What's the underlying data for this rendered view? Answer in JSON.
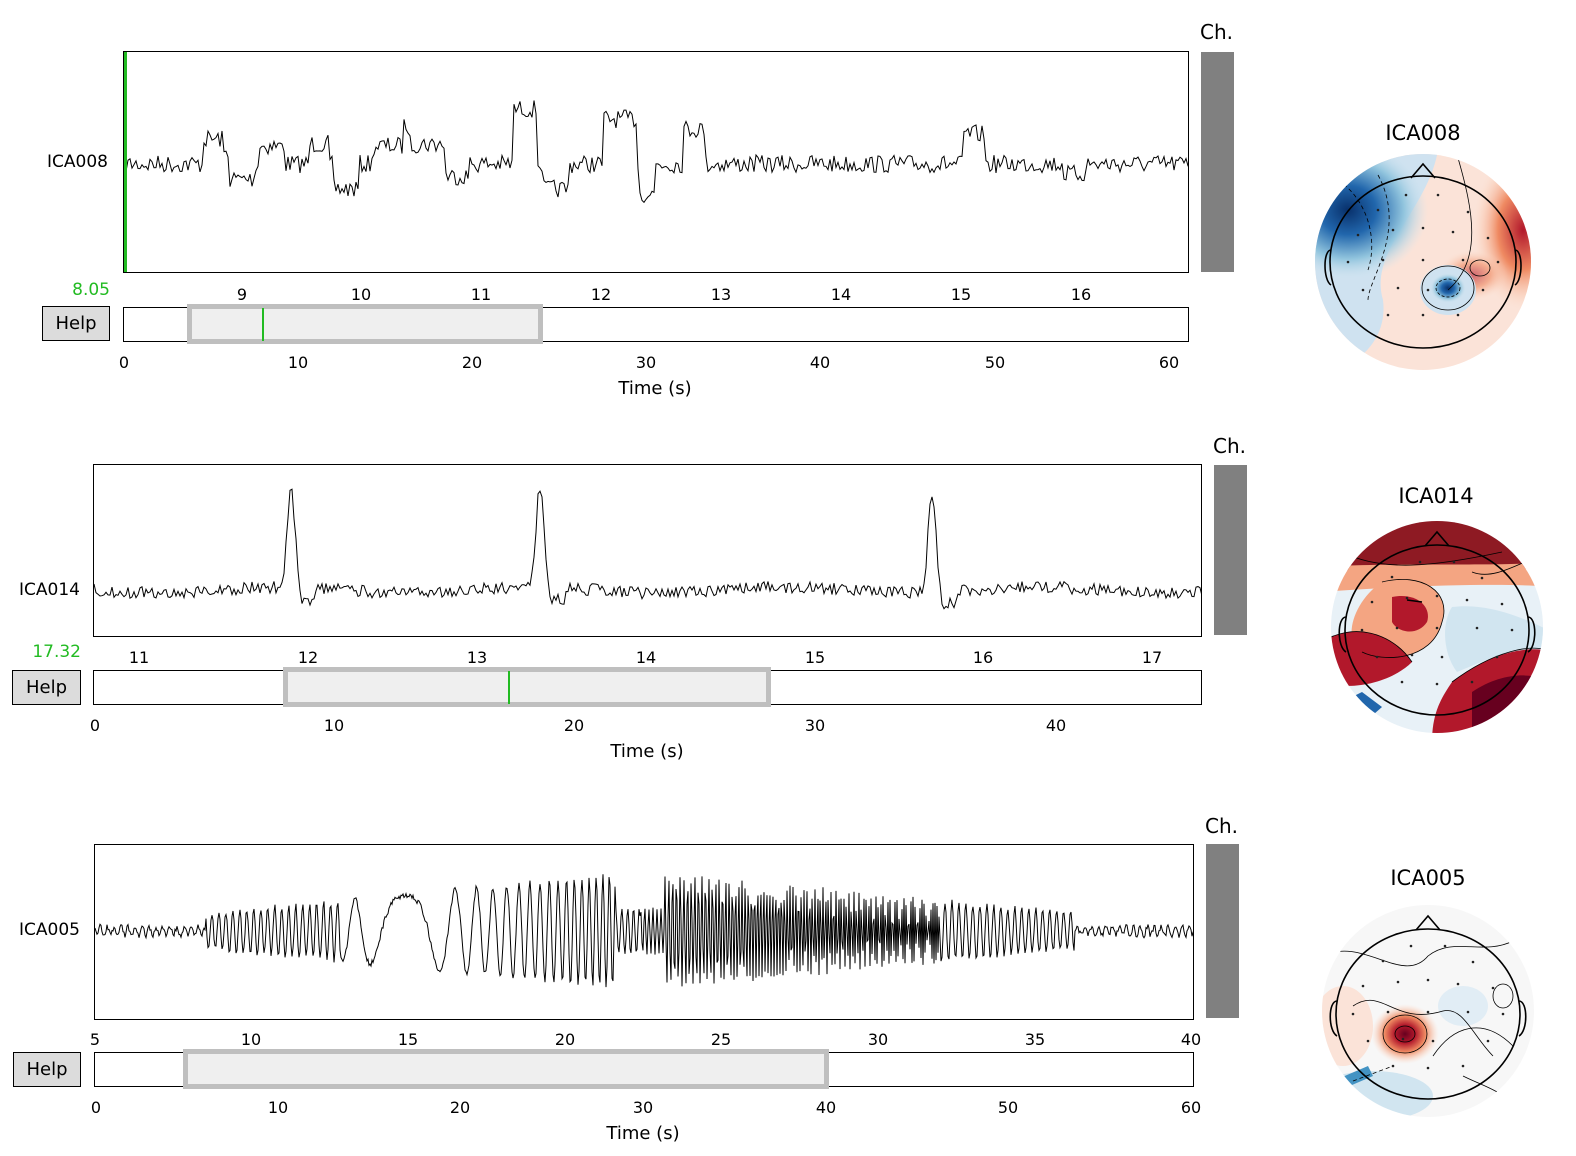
{
  "help_label": "Help",
  "channel_bar_label": "Ch.",
  "time_axis_label": "Time (s)",
  "panels": [
    {
      "component": "ICA008",
      "cursor_value": "8.05",
      "upper_ticks": [
        "9",
        "10",
        "11",
        "12",
        "13",
        "14",
        "15",
        "16"
      ],
      "lower_ticks": [
        "0",
        "10",
        "20",
        "30",
        "40",
        "50",
        "60"
      ],
      "view_window": [
        4,
        24
      ],
      "cursor_time": 8.05,
      "topo_title": "ICA008"
    },
    {
      "component": "ICA014",
      "cursor_value": "17.32",
      "upper_ticks": [
        "11",
        "12",
        "13",
        "14",
        "15",
        "16",
        "17"
      ],
      "lower_ticks": [
        "0",
        "10",
        "20",
        "30",
        "40"
      ],
      "view_window": [
        8,
        28
      ],
      "cursor_time": 17.32,
      "topo_title": "ICA014"
    },
    {
      "component": "ICA005",
      "upper_ticks": [
        "5",
        "10",
        "15",
        "20",
        "25",
        "30",
        "35",
        "40"
      ],
      "lower_ticks": [
        "0",
        "10",
        "20",
        "30",
        "40",
        "50",
        "60"
      ],
      "view_window": [
        5,
        40
      ],
      "topo_title": "ICA005"
    }
  ],
  "colors": {
    "cursor": "#22bb22",
    "channel_bar": "#808080",
    "window_fill": "#efefef",
    "window_border": "#bfbfbf"
  }
}
